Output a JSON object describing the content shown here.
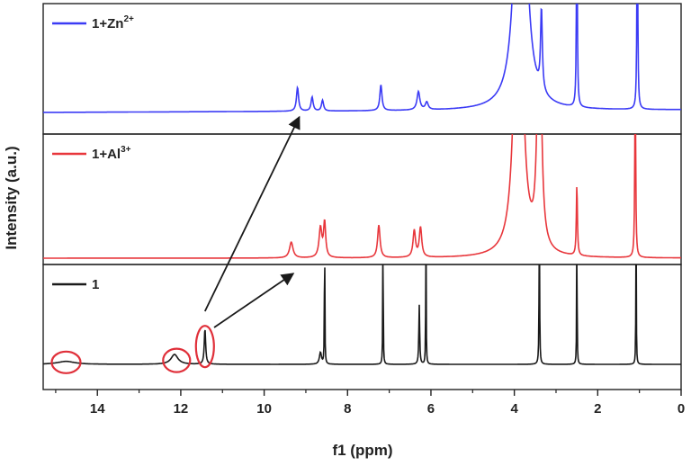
{
  "chart_data": {
    "type": "line",
    "xlabel": "f1 (ppm)",
    "ylabel": "Intensity (a.u.)",
    "xlim": [
      15.3,
      0
    ],
    "x_reversed": true,
    "xticks": [
      "14",
      "12",
      "10",
      "8",
      "6",
      "4",
      "2",
      "0"
    ],
    "legend_position": "top-left of each panel",
    "series": [
      {
        "name": "1+Zn",
        "name_sup": "2+",
        "color": "#3b3bf5",
        "panel": 0,
        "baseline": 0.0,
        "slope": 0.0015,
        "peaks": [
          {
            "x": 9.2,
            "h": 0.22,
            "w": 0.03
          },
          {
            "x": 8.85,
            "h": 0.13,
            "w": 0.03
          },
          {
            "x": 8.6,
            "h": 0.1,
            "w": 0.03
          },
          {
            "x": 7.2,
            "h": 0.24,
            "w": 0.03
          },
          {
            "x": 6.3,
            "h": 0.17,
            "w": 0.04
          },
          {
            "x": 6.1,
            "h": 0.07,
            "w": 0.04
          },
          {
            "x": 3.85,
            "h": 4.0,
            "w": 0.12
          },
          {
            "x": 3.35,
            "h": 0.75,
            "w": 0.025
          },
          {
            "x": 2.5,
            "h": 2.0,
            "w": 0.012
          },
          {
            "x": 1.05,
            "h": 2.0,
            "w": 0.012
          }
        ]
      },
      {
        "name": "1+Al",
        "name_sup": "3+",
        "color": "#e8373c",
        "panel": 1,
        "baseline": 0.0,
        "slope": 0.0,
        "peaks": [
          {
            "x": 9.35,
            "h": 0.16,
            "w": 0.05
          },
          {
            "x": 8.65,
            "h": 0.3,
            "w": 0.04
          },
          {
            "x": 8.55,
            "h": 0.35,
            "w": 0.03
          },
          {
            "x": 7.25,
            "h": 0.33,
            "w": 0.035
          },
          {
            "x": 6.4,
            "h": 0.27,
            "w": 0.035
          },
          {
            "x": 6.25,
            "h": 0.3,
            "w": 0.035
          },
          {
            "x": 3.9,
            "h": 4.0,
            "w": 0.1
          },
          {
            "x": 3.4,
            "h": 3.0,
            "w": 0.05
          },
          {
            "x": 2.5,
            "h": 0.72,
            "w": 0.015
          },
          {
            "x": 1.1,
            "h": 2.0,
            "w": 0.012
          }
        ]
      },
      {
        "name": "1",
        "name_sup": "",
        "color": "#1a1a1a",
        "panel": 2,
        "baseline": 0.0,
        "slope": 0.0,
        "peaks": [
          {
            "x": 14.75,
            "h": 0.03,
            "w": 0.25
          },
          {
            "x": 12.15,
            "h": 0.1,
            "w": 0.1
          },
          {
            "x": 11.42,
            "h": 0.36,
            "w": 0.02
          },
          {
            "x": 8.65,
            "h": 0.12,
            "w": 0.03
          },
          {
            "x": 8.55,
            "h": 1.5,
            "w": 0.006
          },
          {
            "x": 7.15,
            "h": 1.5,
            "w": 0.006
          },
          {
            "x": 6.28,
            "h": 0.6,
            "w": 0.012
          },
          {
            "x": 6.12,
            "h": 1.5,
            "w": 0.006
          },
          {
            "x": 3.4,
            "h": 1.5,
            "w": 0.008
          },
          {
            "x": 2.5,
            "h": 1.5,
            "w": 0.006
          },
          {
            "x": 1.08,
            "h": 1.5,
            "w": 0.006
          }
        ]
      }
    ],
    "annotations": {
      "circles": [
        {
          "x": 14.75,
          "y": 0.02,
          "label": "circled"
        },
        {
          "x": 12.1,
          "y": 0.04,
          "label": "circled"
        },
        {
          "x": 11.42,
          "y": 0.18,
          "label": "circled"
        }
      ],
      "arrows": [
        {
          "from_panel": 2,
          "from_x": 11.42,
          "to_panel": 0,
          "to_x": 9.2
        },
        {
          "from_panel": 2,
          "from_x": 11.2,
          "to_panel": 1,
          "to_x": 9.3
        }
      ]
    }
  }
}
